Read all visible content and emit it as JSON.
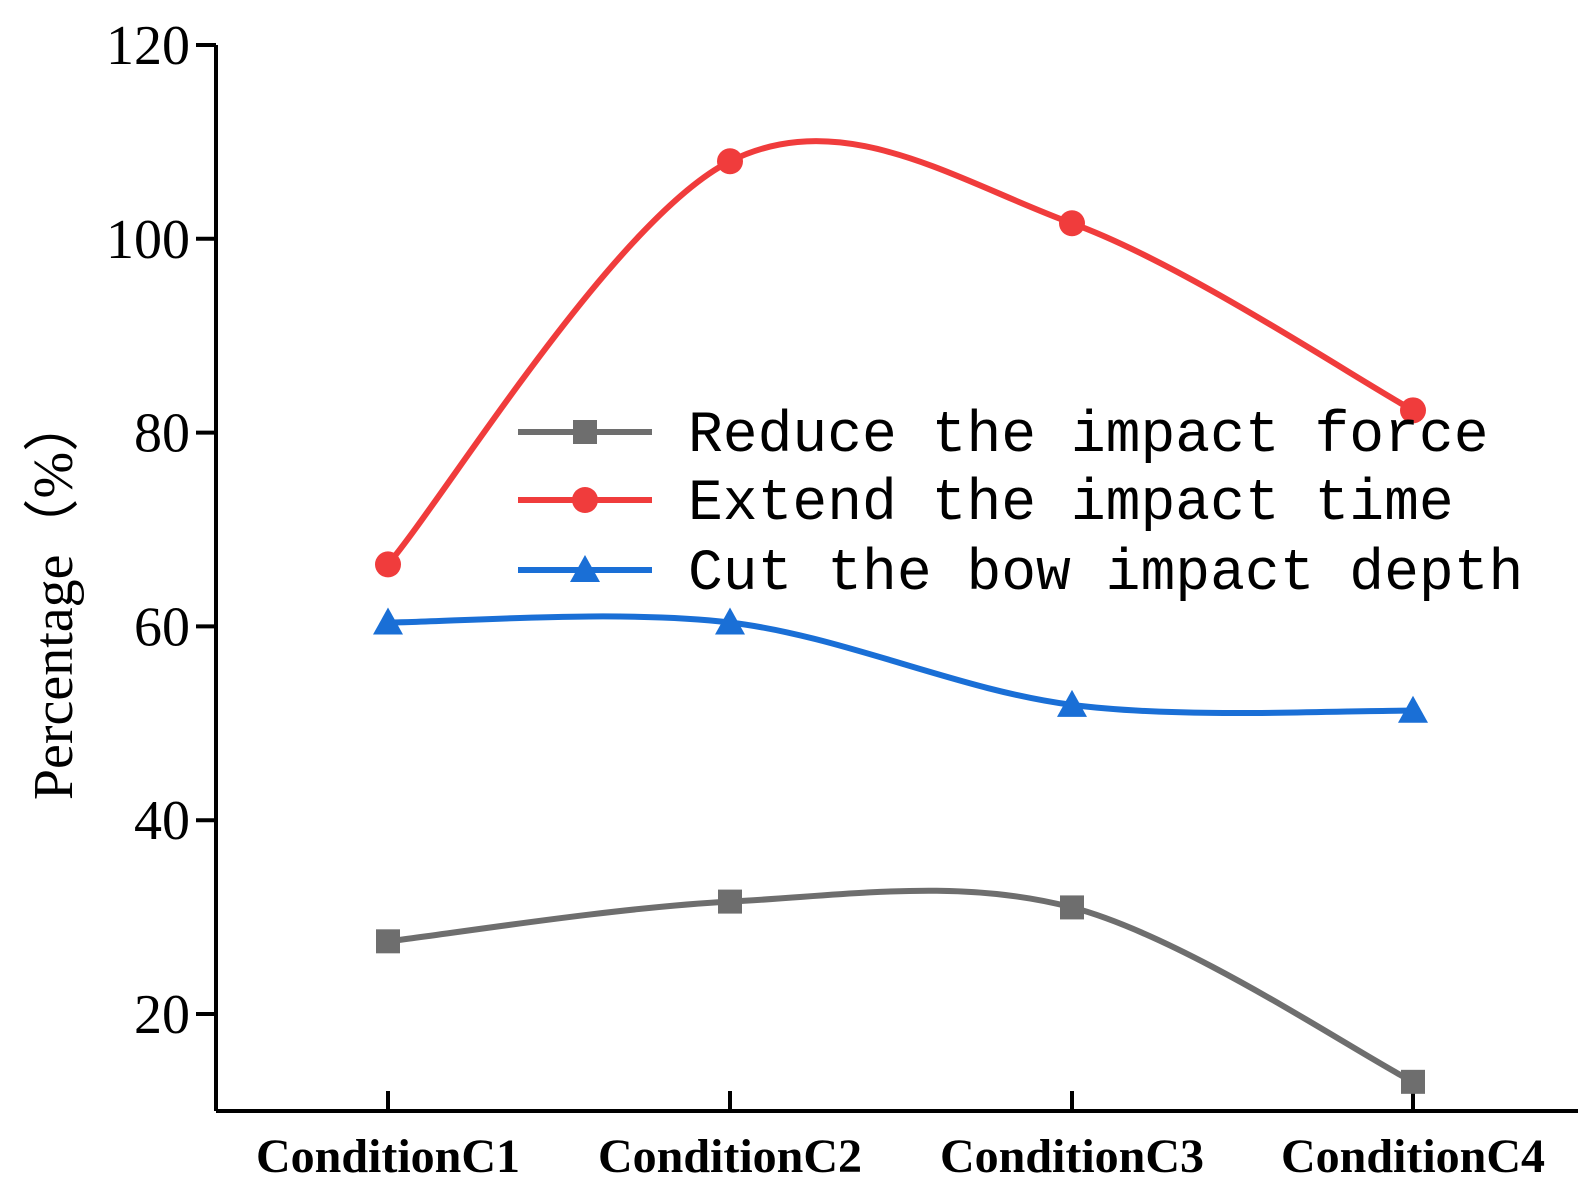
{
  "chart_data": {
    "type": "line",
    "title": "",
    "xlabel": "",
    "ylabel": "Percentage（%）",
    "categories": [
      "ConditionC1",
      "ConditionC2",
      "ConditionC3",
      "ConditionC4"
    ],
    "ylim": [
      10,
      120
    ],
    "yticks": [
      20,
      40,
      60,
      80,
      100,
      120
    ],
    "legend_position": "center-right",
    "series": [
      {
        "name": "Reduce the impact force",
        "marker": "square",
        "color": "#6e6e6e",
        "values": [
          27.5,
          31.6,
          31.0,
          13.0
        ]
      },
      {
        "name": "Extend the impact time",
        "marker": "circle",
        "color": "#f03c3c",
        "values": [
          66.4,
          108.0,
          101.6,
          82.3
        ]
      },
      {
        "name": "Cut the bow impact depth",
        "marker": "triangle",
        "color": "#1a6fd6",
        "values": [
          60.4,
          60.4,
          51.9,
          51.3
        ]
      }
    ]
  }
}
